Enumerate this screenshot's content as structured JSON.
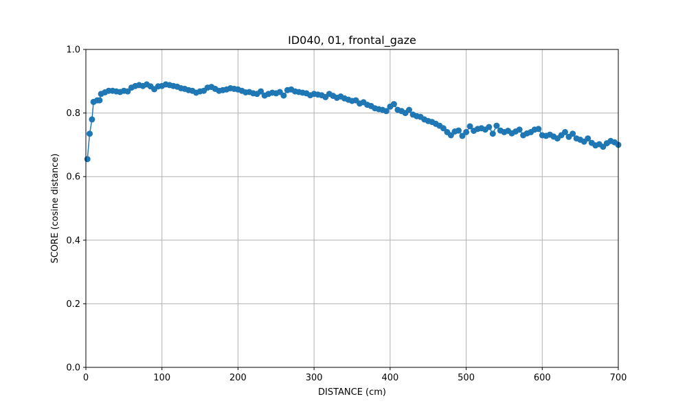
{
  "chart_data": {
    "type": "line",
    "title": "ID040, 01, frontal_gaze",
    "xlabel": "DISTANCE (cm)",
    "ylabel": "SCORE (cosine distance)",
    "xlim": [
      0,
      700
    ],
    "ylim": [
      0.0,
      1.0
    ],
    "xticks": [
      "0",
      "100",
      "200",
      "300",
      "400",
      "500",
      "600",
      "700"
    ],
    "yticks": [
      "0.0",
      "0.2",
      "0.4",
      "0.6",
      "0.8",
      "1.0"
    ],
    "grid": true,
    "series_color": "#1f77b4",
    "series": [
      {
        "x": [
          2,
          5,
          8,
          10,
          15,
          18,
          20,
          25,
          30,
          35,
          40,
          45,
          50,
          55,
          60,
          65,
          70,
          75,
          80,
          85,
          90,
          95,
          100,
          105,
          110,
          115,
          120,
          125,
          130,
          135,
          140,
          145,
          150,
          155,
          160,
          165,
          170,
          175,
          180,
          185,
          190,
          195,
          200,
          205,
          210,
          215,
          220,
          225,
          230,
          235,
          240,
          245,
          250,
          255,
          260,
          265,
          270,
          275,
          280,
          285,
          290,
          295,
          300,
          305,
          310,
          315,
          320,
          325,
          330,
          335,
          340,
          345,
          350,
          355,
          360,
          365,
          370,
          375,
          380,
          385,
          390,
          395,
          400,
          405,
          410,
          415,
          420,
          425,
          430,
          435,
          440,
          445,
          450,
          455,
          460,
          465,
          470,
          475,
          480,
          485,
          490,
          495,
          500,
          505,
          510,
          515,
          520,
          525,
          530,
          535,
          540,
          545,
          550,
          555,
          560,
          565,
          570,
          575,
          580,
          585,
          590,
          595,
          600,
          605,
          610,
          615,
          620,
          625,
          630,
          635,
          640,
          645,
          650,
          655,
          660,
          665,
          670,
          675,
          680,
          685,
          690,
          695,
          700
        ],
        "y": [
          0.655,
          0.735,
          0.78,
          0.835,
          0.84,
          0.84,
          0.86,
          0.865,
          0.87,
          0.87,
          0.868,
          0.866,
          0.87,
          0.868,
          0.88,
          0.885,
          0.888,
          0.885,
          0.89,
          0.884,
          0.875,
          0.884,
          0.885,
          0.89,
          0.888,
          0.885,
          0.883,
          0.878,
          0.876,
          0.872,
          0.87,
          0.864,
          0.868,
          0.87,
          0.88,
          0.882,
          0.876,
          0.87,
          0.872,
          0.874,
          0.878,
          0.876,
          0.874,
          0.87,
          0.865,
          0.866,
          0.862,
          0.86,
          0.868,
          0.855,
          0.86,
          0.864,
          0.862,
          0.866,
          0.855,
          0.872,
          0.874,
          0.868,
          0.866,
          0.864,
          0.862,
          0.856,
          0.86,
          0.858,
          0.856,
          0.85,
          0.86,
          0.854,
          0.848,
          0.852,
          0.846,
          0.842,
          0.838,
          0.84,
          0.83,
          0.834,
          0.826,
          0.822,
          0.815,
          0.812,
          0.81,
          0.806,
          0.82,
          0.828,
          0.81,
          0.806,
          0.8,
          0.81,
          0.795,
          0.79,
          0.788,
          0.78,
          0.775,
          0.772,
          0.766,
          0.76,
          0.752,
          0.74,
          0.73,
          0.742,
          0.745,
          0.728,
          0.74,
          0.758,
          0.744,
          0.75,
          0.752,
          0.748,
          0.756,
          0.735,
          0.76,
          0.745,
          0.74,
          0.744,
          0.736,
          0.742,
          0.748,
          0.73,
          0.736,
          0.74,
          0.748,
          0.75,
          0.73,
          0.728,
          0.732,
          0.726,
          0.72,
          0.73,
          0.74,
          0.725,
          0.735,
          0.72,
          0.716,
          0.71,
          0.72,
          0.706,
          0.698,
          0.702,
          0.694,
          0.705,
          0.712,
          0.708,
          0.7
        ]
      }
    ]
  }
}
